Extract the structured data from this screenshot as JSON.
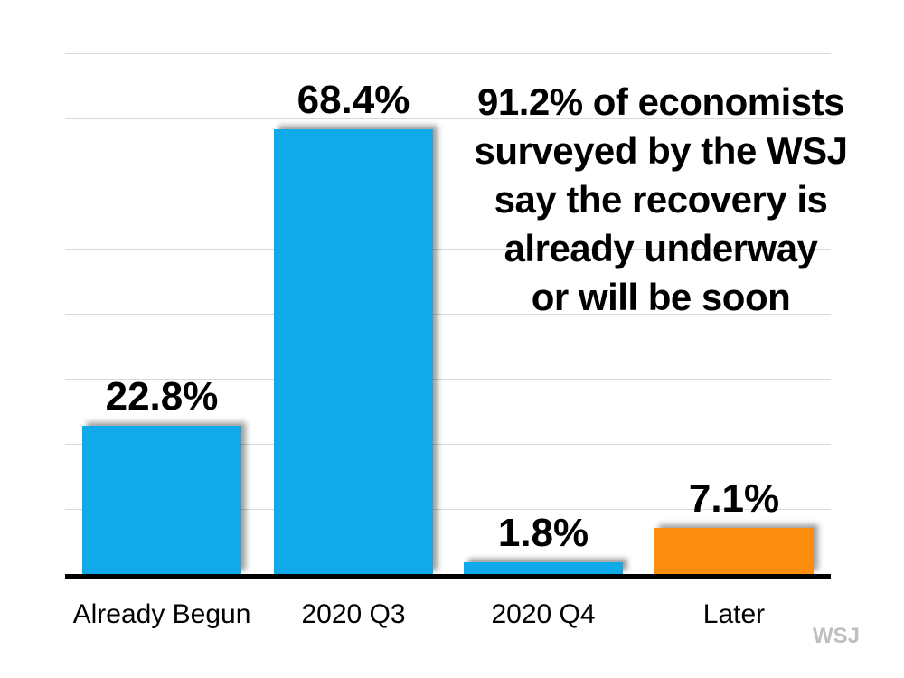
{
  "watermark": "WSJ",
  "annotation": {
    "lines": [
      "91.2% of economists",
      "surveyed by the WSJ",
      "say the recovery is",
      "already underway",
      "or will be soon"
    ]
  },
  "chart_data": {
    "type": "bar",
    "title": "",
    "xlabel": "",
    "ylabel": "",
    "categories": [
      "Already Begun",
      "2020 Q3",
      "2020 Q4",
      "Later"
    ],
    "values": [
      22.8,
      68.4,
      1.8,
      7.1
    ],
    "value_labels": [
      "22.8%",
      "68.4%",
      "1.8%",
      "7.1%"
    ],
    "bar_colors": [
      "#10A9EA",
      "#10A9EA",
      "#10A9EA",
      "#FC8D0E"
    ],
    "ylim": [
      0,
      80
    ],
    "gridline_step": 10,
    "grid": true,
    "legend": false,
    "annotation": "91.2% of economists surveyed by the WSJ say the recovery is already underway or will be soon",
    "source": "WSJ"
  },
  "colors": {
    "blue": "#10A9EA",
    "orange": "#FC8D0E",
    "gridline": "#D9D9D9",
    "axis": "#000000",
    "text": "#000000",
    "watermark": "#BFBFBF",
    "background": "#FFFFFF"
  }
}
